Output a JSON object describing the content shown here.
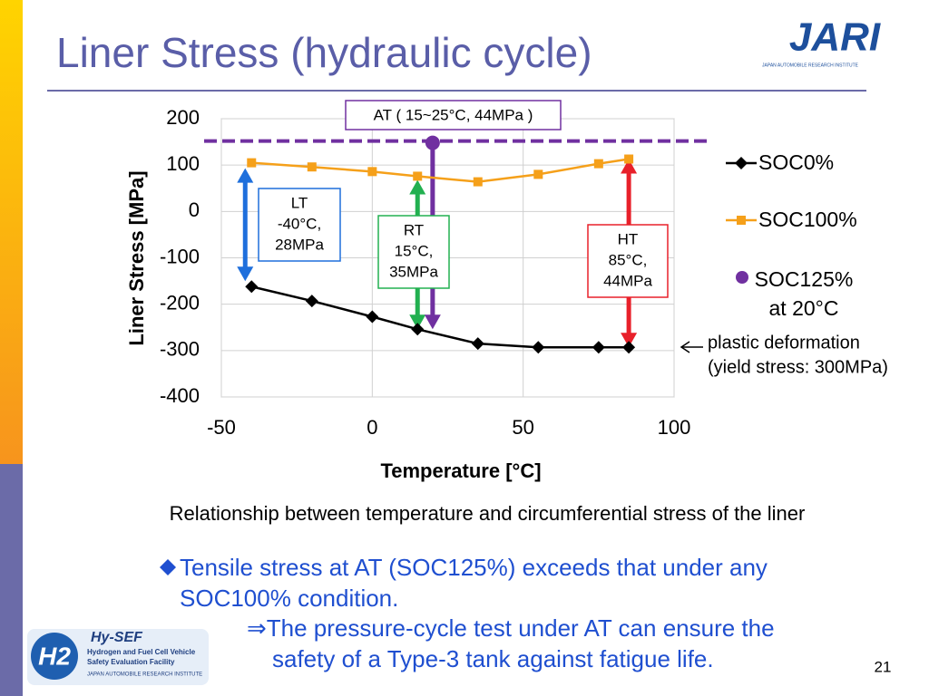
{
  "title": "Liner Stress (hydraulic cycle)",
  "chart_data": {
    "type": "line",
    "xlabel": "Temperature [°C]",
    "ylabel": "Liner Stress [MPa]",
    "xlim": [
      -50,
      100
    ],
    "ylim": [
      -400,
      200
    ],
    "xticks": [
      -50,
      0,
      50,
      100
    ],
    "yticks": [
      -400,
      -300,
      -200,
      -100,
      0,
      100,
      200
    ],
    "grid": true,
    "series": [
      {
        "name": "SOC0%",
        "color": "#000000",
        "marker": "diamond",
        "x": [
          -40,
          -20,
          0,
          15,
          35,
          55,
          75,
          85
        ],
        "values": [
          -162,
          -193,
          -227,
          -254,
          -285,
          -293,
          -293,
          -293
        ]
      },
      {
        "name": "SOC100%",
        "color": "#f5a01a",
        "marker": "square",
        "x": [
          -40,
          -20,
          0,
          15,
          35,
          55,
          75,
          85
        ],
        "values": [
          105,
          96,
          86,
          76,
          64,
          80,
          103,
          113
        ]
      },
      {
        "name": "SOC125% at 20°C",
        "color": "#7030a0",
        "marker": "circle",
        "x": [
          20
        ],
        "values": [
          148
        ]
      }
    ],
    "annotations": {
      "at": "AT ( 15~25°C, 44MPa )",
      "lt": [
        "LT",
        "-40°C,",
        "28MPa"
      ],
      "rt": [
        "RT",
        "15°C,",
        "35MPa"
      ],
      "ht": [
        "HT",
        "85°C,",
        "44MPa"
      ],
      "plastic": [
        "plastic deformation",
        "(yield stress: 300MPa)"
      ]
    },
    "caption": "Relationship between temperature and circumferential stress of the liner"
  },
  "bullets": [
    "Tensile stress at AT (SOC125%) exceeds that under any SOC100% condition.",
    "⇒The pressure-cycle test under AT can ensure the safety of a Type-3 tank against fatigue life."
  ],
  "page_number": "21",
  "logos": {
    "jari": "JARI",
    "jari_sub": "JAPAN AUTOMOBILE RESEARCH INSTITUTE",
    "hysef": "Hy-SEF",
    "hysef_sub": [
      "Hydrogen and Fuel Cell Vehicle",
      "Safety Evaluation Facility",
      "JAPAN AUTOMOBILE RESEARCH INSTITUTE"
    ],
    "h2": "H2"
  }
}
